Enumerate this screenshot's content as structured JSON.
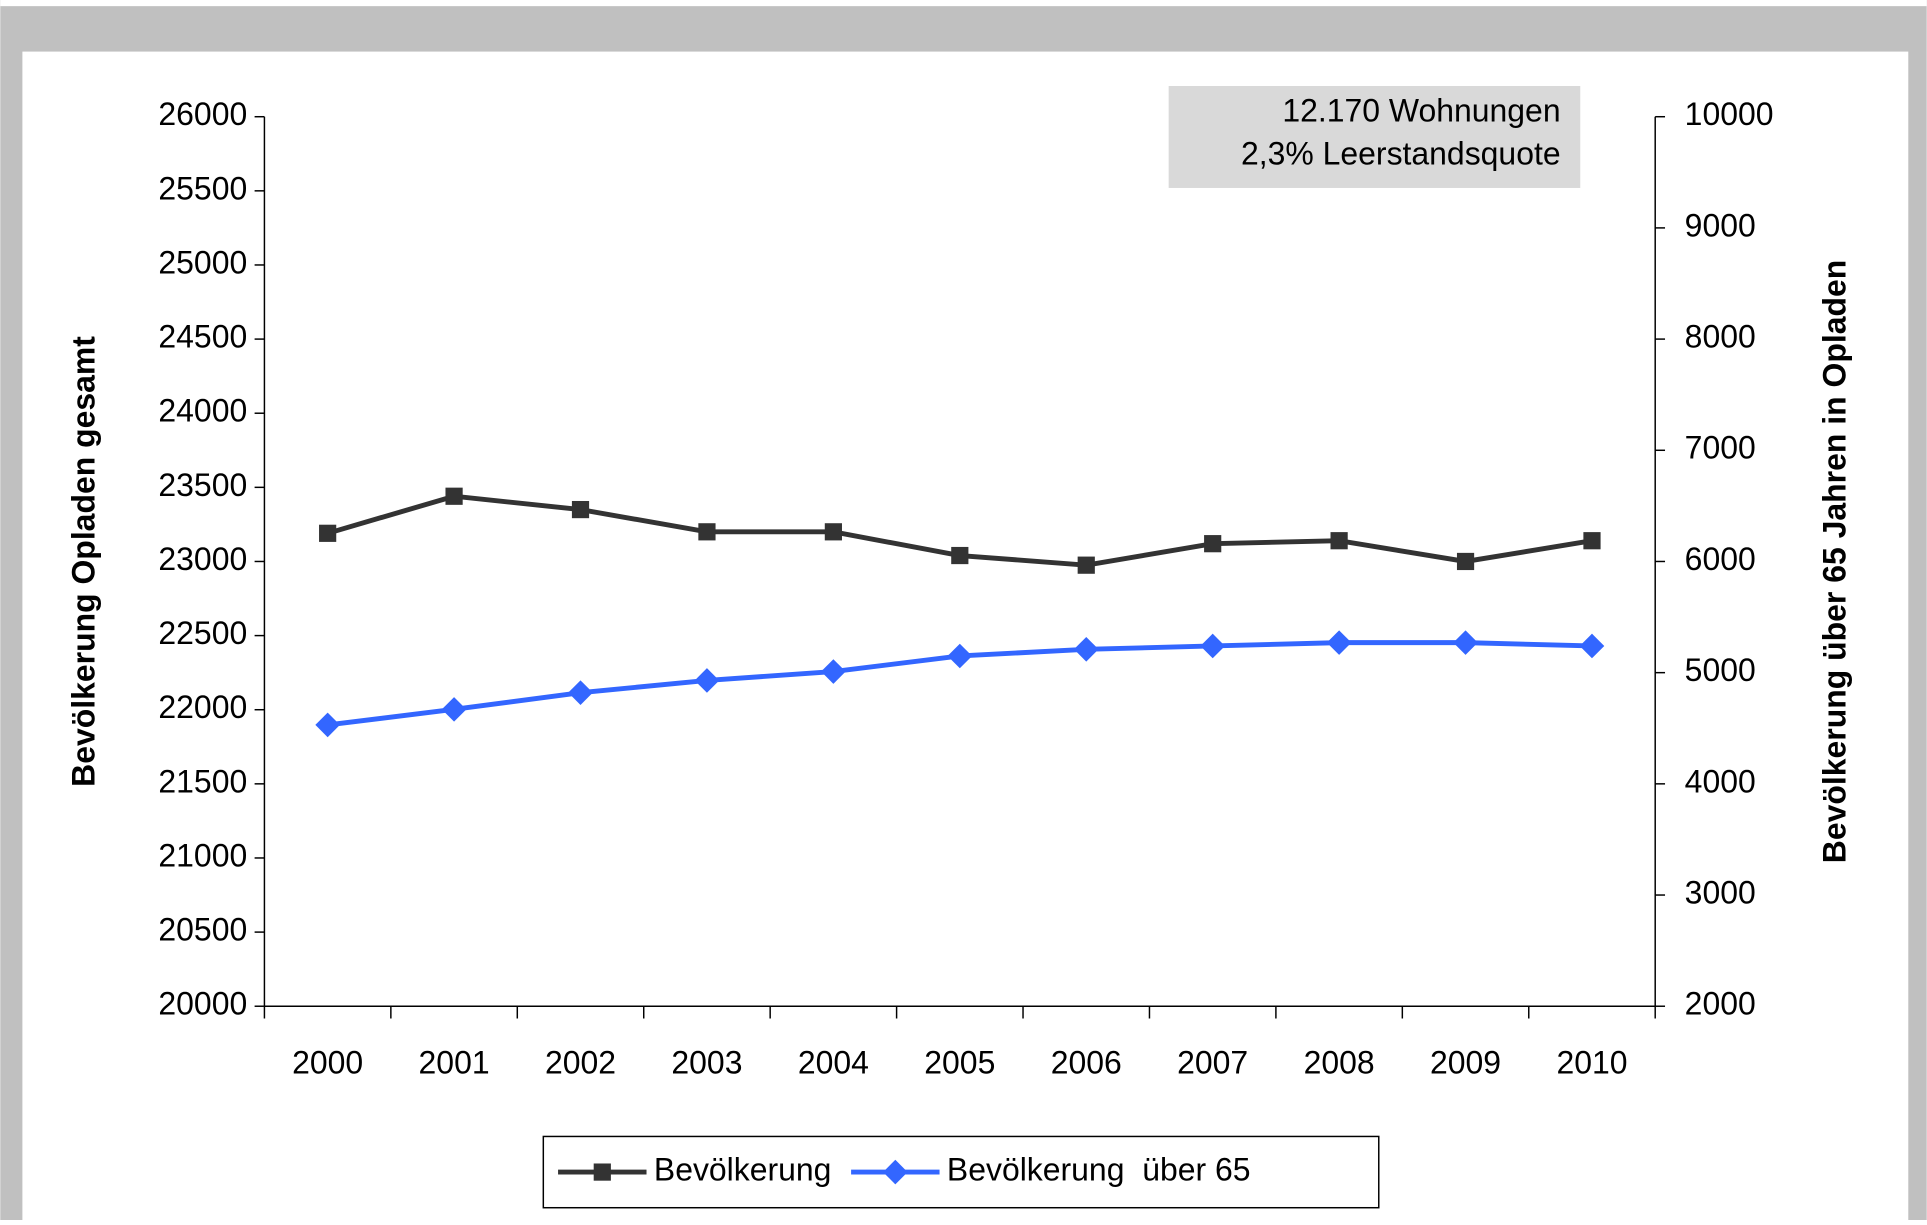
{
  "chart_data": {
    "type": "line",
    "categories": [
      "2000",
      "2001",
      "2002",
      "2003",
      "2004",
      "2005",
      "2006",
      "2007",
      "2008",
      "2009",
      "2010"
    ],
    "series": [
      {
        "name": "Bevölkerung",
        "color": "#333333",
        "marker": "square",
        "axis": "y",
        "values": [
          23190,
          23440,
          23350,
          23200,
          23200,
          23040,
          22975,
          23120,
          23140,
          23000,
          23140
        ]
      },
      {
        "name": "Bevölkerung  über 65",
        "color": "#3366ff",
        "marker": "diamond",
        "axis": "y2",
        "values": [
          4530,
          4670,
          4820,
          4930,
          5010,
          5150,
          5210,
          5240,
          5270,
          5270,
          5240
        ]
      }
    ],
    "ylabel": "Bevölkerung Opladen gesamt",
    "y2label": "Bevölkerung über 65 Jahren in Opladen",
    "ylim": [
      20000,
      26000
    ],
    "yticks": [
      20000,
      20500,
      21000,
      21500,
      22000,
      22500,
      23000,
      23500,
      24000,
      24500,
      25000,
      25500,
      26000
    ],
    "y2lim": [
      2000,
      10000
    ],
    "y2ticks": [
      2000,
      3000,
      4000,
      5000,
      6000,
      7000,
      8000,
      9000,
      10000
    ],
    "annotations": [
      "12.170 Wohnungen",
      "2,3% Leerstandsquote"
    ],
    "legend": "bottom",
    "grid": false
  }
}
